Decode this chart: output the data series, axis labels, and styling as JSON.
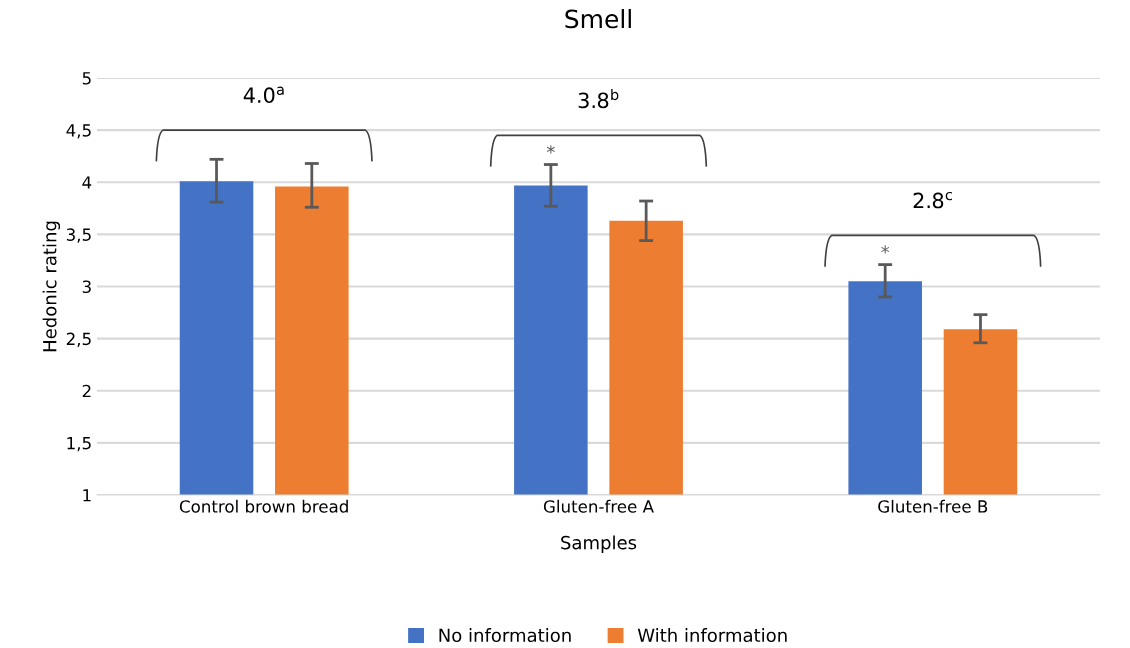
{
  "chart_data": {
    "type": "bar",
    "title": "Smell",
    "xlabel": "Samples",
    "ylabel": "Hedonic rating",
    "categories": [
      "Control brown bread",
      "Gluten-free A",
      "Gluten-free B"
    ],
    "series": [
      {
        "name": "No information",
        "color": "#4472c4",
        "values": [
          4.01,
          3.97,
          3.05
        ],
        "errors": [
          [
            3.81,
            4.22
          ],
          [
            3.77,
            4.17
          ],
          [
            2.9,
            3.21
          ]
        ]
      },
      {
        "name": "With information",
        "color": "#ed7d31",
        "values": [
          3.96,
          3.63,
          2.59
        ],
        "errors": [
          [
            3.76,
            4.18
          ],
          [
            3.44,
            3.82
          ],
          [
            2.46,
            2.73
          ]
        ]
      }
    ],
    "ylim": [
      1,
      5
    ],
    "yticks": [
      {
        "value": 1,
        "label": "1"
      },
      {
        "value": 1.5,
        "label": "1,5"
      },
      {
        "value": 2,
        "label": "2"
      },
      {
        "value": 2.5,
        "label": "2,5"
      },
      {
        "value": 3,
        "label": "3"
      },
      {
        "value": 3.5,
        "label": "3,5"
      },
      {
        "value": 4,
        "label": "4"
      },
      {
        "value": 4.5,
        "label": "4,5"
      },
      {
        "value": 5,
        "label": "5"
      }
    ],
    "grid": "y",
    "legend": "bottom",
    "annotations": [
      "4.0$^{a}$",
      "3.8$^{b}$",
      "2.8$^{c}$",
      "*",
      "*"
    ]
  }
}
